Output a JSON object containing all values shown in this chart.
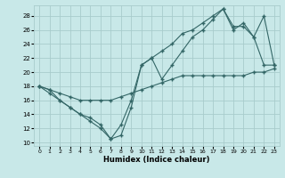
{
  "xlabel": "Humidex (Indice chaleur)",
  "background_color": "#c8e8e8",
  "grid_color": "#a8cccc",
  "line_color": "#336666",
  "xlim": [
    -0.5,
    23.5
  ],
  "ylim": [
    9.5,
    29.5
  ],
  "xticks": [
    0,
    1,
    2,
    3,
    4,
    5,
    6,
    7,
    8,
    9,
    10,
    11,
    12,
    13,
    14,
    15,
    16,
    17,
    18,
    19,
    20,
    21,
    22,
    23
  ],
  "yticks": [
    10,
    12,
    14,
    16,
    18,
    20,
    22,
    24,
    26,
    28
  ],
  "line1_x": [
    0,
    1,
    2,
    3,
    4,
    5,
    6,
    7,
    8,
    9,
    10,
    11,
    12,
    13,
    14,
    15,
    16,
    17,
    18,
    19,
    20,
    21,
    22,
    23
  ],
  "line1_y": [
    18,
    17.5,
    17,
    16.5,
    16,
    16,
    16,
    16,
    16.5,
    17,
    17.5,
    18,
    18.5,
    19,
    19.5,
    19.5,
    19.5,
    19.5,
    19.5,
    19.5,
    19.5,
    20,
    20,
    20.5
  ],
  "line2_x": [
    0,
    1,
    2,
    3,
    4,
    5,
    6,
    7,
    8,
    9,
    10,
    11,
    12,
    13,
    14,
    15,
    16,
    17,
    18,
    19,
    20,
    21,
    22,
    23
  ],
  "line2_y": [
    18,
    17,
    16,
    15,
    14,
    13,
    12,
    10.5,
    11,
    15,
    21,
    22,
    19,
    21,
    23,
    25,
    26,
    27.5,
    29,
    26,
    27,
    25,
    28,
    21
  ],
  "line3_x": [
    0,
    1,
    2,
    3,
    4,
    5,
    6,
    7,
    8,
    9,
    10,
    11,
    12,
    13,
    14,
    15,
    16,
    17,
    18,
    19,
    20,
    21,
    22,
    23
  ],
  "line3_y": [
    18,
    17.5,
    16,
    15,
    14,
    13.5,
    12.5,
    10.5,
    12.5,
    16,
    21,
    22,
    23,
    24,
    25.5,
    26,
    27,
    28,
    29,
    26.5,
    26.5,
    25,
    21,
    21
  ]
}
